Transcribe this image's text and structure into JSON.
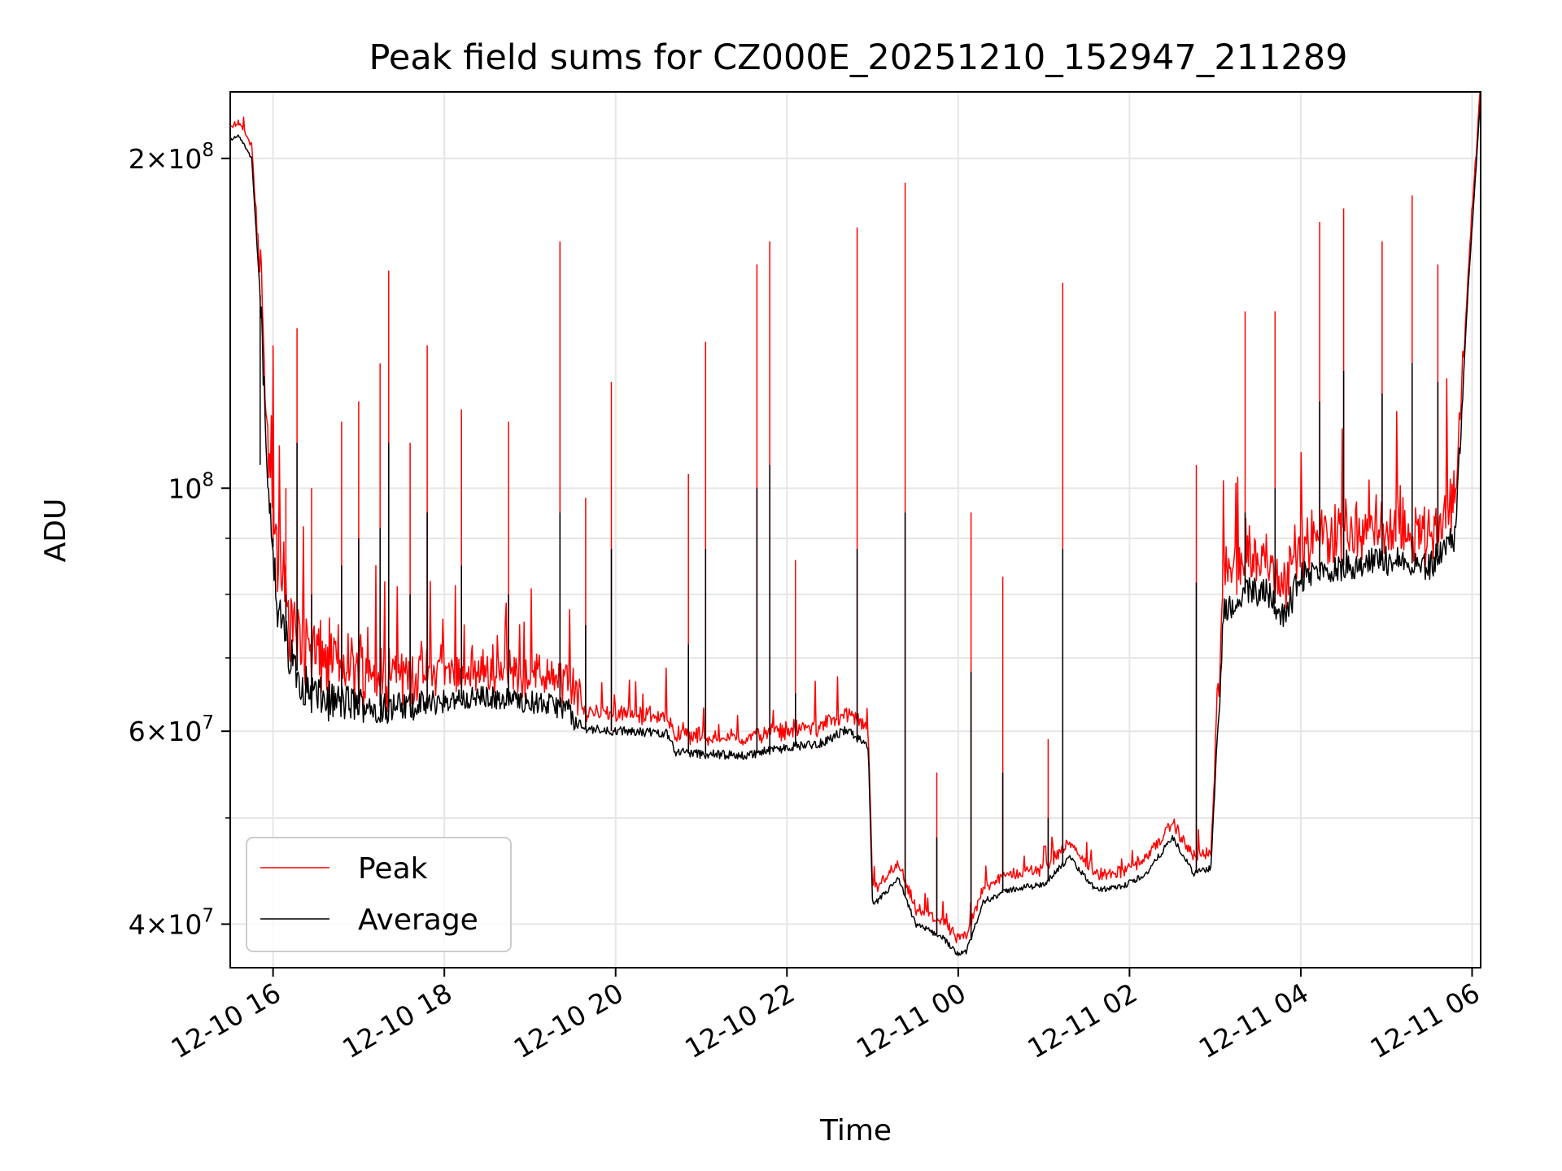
{
  "chart_data": {
    "type": "line",
    "title": "Peak field sums for CZ000E_20251210_152947_211289",
    "xlabel": "Time",
    "ylabel": "ADU",
    "yscale": "log",
    "ylim": [
      36500000,
      230000000
    ],
    "xlim_hours": [
      15.5,
      30.1
    ],
    "grid": true,
    "legend_position": "lower-left",
    "colors": {
      "Peak": "#ff0000",
      "Average": "#000000",
      "grid": "#e6e6e6"
    },
    "x_ticks": [
      {
        "hour": 16,
        "label": "12-10 16"
      },
      {
        "hour": 18,
        "label": "12-10 18"
      },
      {
        "hour": 20,
        "label": "12-10 20"
      },
      {
        "hour": 22,
        "label": "12-10 22"
      },
      {
        "hour": 24,
        "label": "12-11 00"
      },
      {
        "hour": 26,
        "label": "12-11 02"
      },
      {
        "hour": 28,
        "label": "12-11 04"
      },
      {
        "hour": 30,
        "label": "12-11 06"
      }
    ],
    "y_major_ticks": [
      {
        "value": 40000000,
        "mantissa": "4",
        "exp": "7"
      },
      {
        "value": 60000000,
        "mantissa": "6",
        "exp": "7"
      },
      {
        "value": 100000000,
        "mantissa": "",
        "exp": "8"
      },
      {
        "value": 200000000,
        "mantissa": "2",
        "exp": "8"
      }
    ],
    "y_minor_ticks": [
      50000000,
      70000000,
      80000000,
      90000000
    ],
    "baseline_hours": [
      15.5,
      15.6,
      15.75,
      15.85,
      15.95,
      16.05,
      16.2,
      16.4,
      16.6,
      17.0,
      17.5,
      18.0,
      18.5,
      19.0,
      19.45,
      19.55,
      20.0,
      20.6,
      20.7,
      21.0,
      21.5,
      22.0,
      22.4,
      22.7,
      22.95,
      23.0,
      23.3,
      23.5,
      23.8,
      24.0,
      24.1,
      24.3,
      24.6,
      25.0,
      25.3,
      25.6,
      25.9,
      26.2,
      26.5,
      26.75,
      26.95,
      27.1,
      27.3,
      27.6,
      27.8,
      28.0,
      28.5,
      29.0,
      29.5,
      29.8,
      29.95,
      30.1
    ],
    "average_baseline": [
      208000000,
      210000000,
      200000000,
      150000000,
      100000000,
      78000000,
      70000000,
      65500000,
      64000000,
      63500000,
      63000000,
      64000000,
      64500000,
      63800000,
      63000000,
      60500000,
      60000000,
      59800000,
      57500000,
      57200000,
      57000000,
      58000000,
      58500000,
      60200000,
      58000000,
      41500000,
      44000000,
      40000000,
      39000000,
      37600000,
      37800000,
      42000000,
      43000000,
      43500000,
      46000000,
      43000000,
      43200000,
      44500000,
      48000000,
      44500000,
      45000000,
      77000000,
      80000000,
      81000000,
      76000000,
      83000000,
      85000000,
      86000000,
      85000000,
      90000000,
      150000000,
      228000000
    ],
    "spikes": [
      {
        "hour": 15.85,
        "peak": 145000000,
        "average": 105000000
      },
      {
        "hour": 16.0,
        "peak": 135000000,
        "average": 90000000
      },
      {
        "hour": 16.15,
        "peak": 100000000,
        "average": 80000000
      },
      {
        "hour": 16.28,
        "peak": 140000000,
        "average": 110000000
      },
      {
        "hour": 16.45,
        "peak": 100000000,
        "average": 80000000
      },
      {
        "hour": 16.8,
        "peak": 115000000,
        "average": 85000000
      },
      {
        "hour": 17.0,
        "peak": 120000000,
        "average": 90000000
      },
      {
        "hour": 17.25,
        "peak": 130000000,
        "average": 92000000
      },
      {
        "hour": 17.35,
        "peak": 158000000,
        "average": 110000000
      },
      {
        "hour": 17.6,
        "peak": 110000000,
        "average": 80000000
      },
      {
        "hour": 17.8,
        "peak": 135000000,
        "average": 95000000
      },
      {
        "hour": 18.2,
        "peak": 118000000,
        "average": 85000000
      },
      {
        "hour": 18.75,
        "peak": 115000000,
        "average": 80000000
      },
      {
        "hour": 19.35,
        "peak": 168000000,
        "average": 95000000
      },
      {
        "hour": 19.65,
        "peak": 98000000,
        "average": 75000000
      },
      {
        "hour": 19.95,
        "peak": 125000000,
        "average": 88000000
      },
      {
        "hour": 20.85,
        "peak": 103000000,
        "average": 72000000
      },
      {
        "hour": 21.05,
        "peak": 136000000,
        "average": 88000000
      },
      {
        "hour": 21.65,
        "peak": 160000000,
        "average": 100000000
      },
      {
        "hour": 21.8,
        "peak": 168000000,
        "average": 105000000
      },
      {
        "hour": 22.1,
        "peak": 86000000,
        "average": 65000000
      },
      {
        "hour": 22.82,
        "peak": 173000000,
        "average": 88000000
      },
      {
        "hour": 23.38,
        "peak": 190000000,
        "average": 95000000
      },
      {
        "hour": 23.75,
        "peak": 55000000,
        "average": 48000000
      },
      {
        "hour": 24.15,
        "peak": 95000000,
        "average": 68000000
      },
      {
        "hour": 24.52,
        "peak": 83000000,
        "average": 55000000
      },
      {
        "hour": 25.05,
        "peak": 59000000,
        "average": 50000000
      },
      {
        "hour": 25.22,
        "peak": 154000000,
        "average": 88000000
      },
      {
        "hour": 26.78,
        "peak": 105000000,
        "average": 82000000
      },
      {
        "hour": 27.35,
        "peak": 145000000,
        "average": 95000000
      },
      {
        "hour": 27.7,
        "peak": 145000000,
        "average": 100000000
      },
      {
        "hour": 28.22,
        "peak": 175000000,
        "average": 120000000
      },
      {
        "hour": 28.5,
        "peak": 180000000,
        "average": 128000000
      },
      {
        "hour": 28.95,
        "peak": 168000000,
        "average": 122000000
      },
      {
        "hour": 29.3,
        "peak": 185000000,
        "average": 130000000
      },
      {
        "hour": 29.6,
        "peak": 160000000,
        "average": 125000000
      }
    ],
    "series": [
      {
        "name": "Peak",
        "color": "#ff0000"
      },
      {
        "name": "Average",
        "color": "#000000"
      }
    ]
  }
}
